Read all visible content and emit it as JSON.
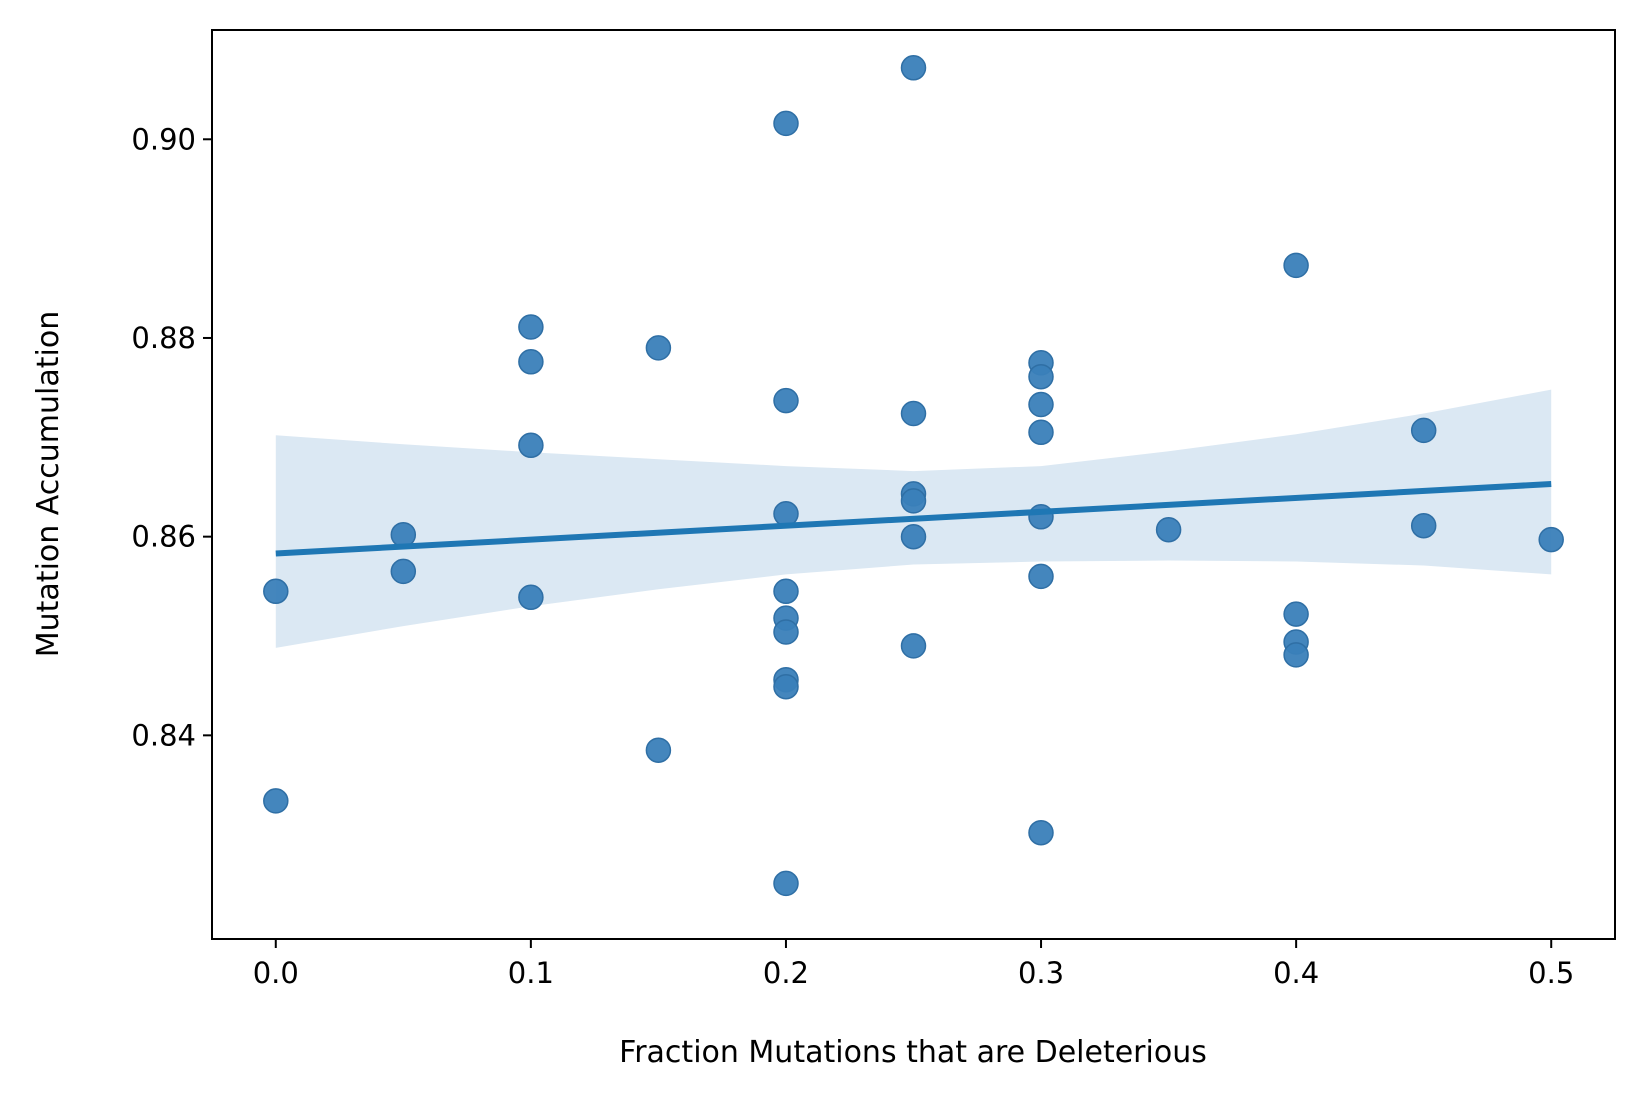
{
  "chart_data": {
    "type": "scatter",
    "title": "",
    "xlabel": "Fraction Mutations that are Deleterious",
    "ylabel": "Mutation Accumulation",
    "xlim": [
      -0.025,
      0.525
    ],
    "ylim": [
      0.8195,
      0.911
    ],
    "xticks": [
      0.0,
      0.1,
      0.2,
      0.3,
      0.4,
      0.5
    ],
    "xtick_labels": [
      "0.0",
      "0.1",
      "0.2",
      "0.3",
      "0.4",
      "0.5"
    ],
    "yticks": [
      0.84,
      0.86,
      0.88,
      0.9
    ],
    "ytick_labels": [
      "0.84",
      "0.86",
      "0.88",
      "0.90"
    ],
    "grid": false,
    "legend": "none",
    "colors": {
      "points": "#3a80b9",
      "regression_line": "#1f77b4",
      "confidence_band": "#dbe8f3"
    },
    "points": [
      {
        "x": 0.0,
        "y": 0.8545
      },
      {
        "x": 0.0,
        "y": 0.8334
      },
      {
        "x": 0.05,
        "y": 0.8602
      },
      {
        "x": 0.05,
        "y": 0.8565
      },
      {
        "x": 0.1,
        "y": 0.8811
      },
      {
        "x": 0.1,
        "y": 0.8776
      },
      {
        "x": 0.1,
        "y": 0.8692
      },
      {
        "x": 0.1,
        "y": 0.8539
      },
      {
        "x": 0.15,
        "y": 0.879
      },
      {
        "x": 0.15,
        "y": 0.8385
      },
      {
        "x": 0.2,
        "y": 0.9016
      },
      {
        "x": 0.2,
        "y": 0.8737
      },
      {
        "x": 0.2,
        "y": 0.8623
      },
      {
        "x": 0.2,
        "y": 0.8545
      },
      {
        "x": 0.2,
        "y": 0.8518
      },
      {
        "x": 0.2,
        "y": 0.8504
      },
      {
        "x": 0.2,
        "y": 0.8456
      },
      {
        "x": 0.2,
        "y": 0.8449
      },
      {
        "x": 0.2,
        "y": 0.8251
      },
      {
        "x": 0.25,
        "y": 0.9072
      },
      {
        "x": 0.25,
        "y": 0.8724
      },
      {
        "x": 0.25,
        "y": 0.8643
      },
      {
        "x": 0.25,
        "y": 0.8636
      },
      {
        "x": 0.25,
        "y": 0.86
      },
      {
        "x": 0.25,
        "y": 0.849
      },
      {
        "x": 0.3,
        "y": 0.8775
      },
      {
        "x": 0.3,
        "y": 0.8761
      },
      {
        "x": 0.3,
        "y": 0.8733
      },
      {
        "x": 0.3,
        "y": 0.8705
      },
      {
        "x": 0.3,
        "y": 0.862
      },
      {
        "x": 0.3,
        "y": 0.856
      },
      {
        "x": 0.3,
        "y": 0.8302
      },
      {
        "x": 0.35,
        "y": 0.8607
      },
      {
        "x": 0.4,
        "y": 0.8873
      },
      {
        "x": 0.4,
        "y": 0.8522
      },
      {
        "x": 0.4,
        "y": 0.8494
      },
      {
        "x": 0.4,
        "y": 0.8481
      },
      {
        "x": 0.45,
        "y": 0.8707
      },
      {
        "x": 0.45,
        "y": 0.8611
      },
      {
        "x": 0.5,
        "y": 0.8597
      }
    ],
    "regression": {
      "x": [
        0.0,
        0.5
      ],
      "y": [
        0.8583,
        0.8653
      ]
    },
    "confidence_band": {
      "x": [
        0.0,
        0.05,
        0.1,
        0.15,
        0.2,
        0.25,
        0.3,
        0.35,
        0.4,
        0.45,
        0.5
      ],
      "upper": [
        0.8702,
        0.8693,
        0.8685,
        0.8678,
        0.8671,
        0.8666,
        0.8671,
        0.8686,
        0.8703,
        0.8724,
        0.8748
      ],
      "lower": [
        0.8488,
        0.851,
        0.853,
        0.8547,
        0.8562,
        0.8572,
        0.8575,
        0.8576,
        0.8575,
        0.8571,
        0.8562
      ]
    }
  }
}
